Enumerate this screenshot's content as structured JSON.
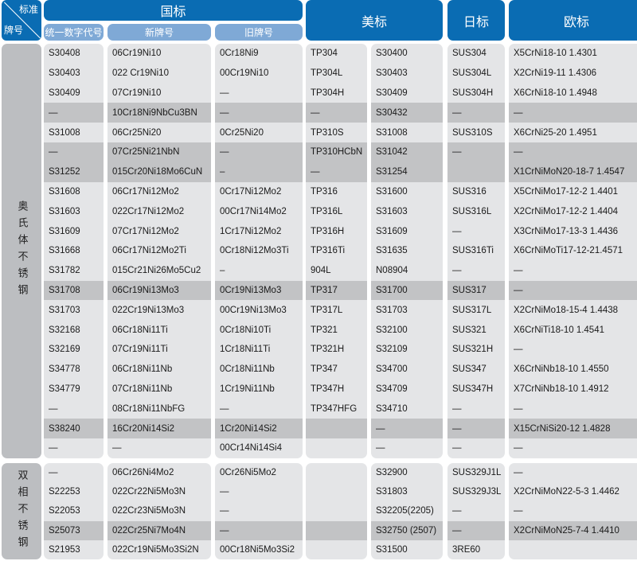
{
  "corner": {
    "standard": "标准",
    "grade": "牌号"
  },
  "headers": {
    "gb": "国标",
    "gb_sub": [
      "统一数字代号",
      "新牌号",
      "旧牌号"
    ],
    "us": "美标",
    "jp": "日标",
    "eu": "欧标"
  },
  "sections": [
    {
      "label": "奥氏体不锈钢",
      "dark_rows": [
        3,
        5,
        6,
        12,
        19
      ],
      "rows": [
        [
          "S30408",
          "06Cr19Ni10",
          "0Cr18Ni9",
          "TP304",
          "S30400",
          "SUS304",
          "X5CrNi18-10 1.4301"
        ],
        [
          "S30403",
          "022 Cr19Ni10",
          "00Cr19Ni10",
          "TP304L",
          "S30403",
          "SUS304L",
          "X2CrNi19-11  1.4306"
        ],
        [
          "S30409",
          "07Cr19Ni10",
          "—",
          "TP304H",
          "S30409",
          "SUS304H",
          "X6CrNi18-10  1.4948"
        ],
        [
          "—",
          "10Cr18Ni9NbCu3BN",
          "—",
          "—",
          "S30432",
          "—",
          "—"
        ],
        [
          "S31008",
          "06Cr25Ni20",
          "0Cr25Ni20",
          "TP310S",
          "S31008",
          "SUS310S",
          "X6CrNi25-20 1.4951"
        ],
        [
          "—",
          "07Cr25Ni21NbN",
          "—",
          "TP310HCbN",
          "S31042",
          "—",
          "—"
        ],
        [
          "S31252",
          "015Cr20Ni18Mo6CuN",
          "–",
          "—",
          "S31254",
          "",
          "X1CrNiMoN20-18-7 1.4547"
        ],
        [
          "S31608",
          "06Cr17Ni12Mo2",
          "0Cr17Ni12Mo2",
          "TP316",
          "S31600",
          "SUS316",
          "X5CrNiMo17-12-2 1.4401"
        ],
        [
          "S31603",
          "022Cr17Ni12Mo2",
          "00Cr17Ni14Mo2",
          "TP316L",
          "S31603",
          "SUS316L",
          "X2CrNiMo17-12-2 1.4404"
        ],
        [
          "S31609",
          "07Cr17Ni12Mo2",
          "1Cr17Ni12Mo2",
          "TP316H",
          "S31609",
          "—",
          "X3CrNiMo17-13-3 1.4436"
        ],
        [
          "S31668",
          "06Cr17Ni12Mo2Ti",
          "0Cr18Ni12Mo3Ti",
          "TP316Ti",
          "S31635",
          "SUS316Ti",
          "X6CrNiMoTi17-12-21.4571"
        ],
        [
          "S31782",
          "015Cr21Ni26Mo5Cu2",
          "–",
          "904L",
          "N08904",
          "—",
          "—"
        ],
        [
          "S31708",
          "06Cr19Ni13Mo3",
          "0Cr19Ni13Mo3",
          "TP317",
          "S31700",
          "SUS317",
          "—"
        ],
        [
          "S31703",
          "022Cr19Ni13Mo3",
          "00Cr19Ni13Mo3",
          "TP317L",
          "S31703",
          "SUS317L",
          "X2CrNiMo18-15-4 1.4438"
        ],
        [
          "S32168",
          "06Cr18Ni11Ti",
          "0Cr18Ni10Ti",
          "TP321",
          "S32100",
          "SUS321",
          "X6CrNiTi18-10 1.4541"
        ],
        [
          "S32169",
          "07Cr19Ni11Ti",
          "1Cr18Ni11Ti",
          "TP321H",
          "S32109",
          "SUS321H",
          "—"
        ],
        [
          "S34778",
          "06Cr18Ni11Nb",
          "0Cr18Ni11Nb",
          "TP347",
          "S34700",
          "SUS347",
          "X6CrNiNb18-10 1.4550"
        ],
        [
          "S34779",
          "07Cr18Ni11Nb",
          "1Cr19Ni11Nb",
          "TP347H",
          "S34709",
          "SUS347H",
          "X7CrNiNb18-10 1.4912"
        ],
        [
          "—",
          "08Cr18Ni11NbFG",
          "—",
          "TP347HFG",
          "S34710",
          "—",
          "—"
        ],
        [
          "S38240",
          "16Cr20Ni14Si2",
          "1Cr20Ni14Si2",
          "",
          "—",
          "—",
          "X15CrNiSi20-12 1.4828"
        ],
        [
          "—",
          "—",
          "00Cr14Ni14Si4",
          "",
          "—",
          "—",
          "—"
        ]
      ]
    },
    {
      "label": "双相不锈钢",
      "dark_rows": [
        3
      ],
      "rows": [
        [
          "—",
          "06Cr26Ni4Mo2",
          "0Cr26Ni5Mo2",
          "",
          "S32900",
          "SUS329J1L",
          "—"
        ],
        [
          "S22253",
          "022Cr22Ni5Mo3N",
          "—",
          "",
          "S31803",
          "SUS329J3L",
          "X2CrNiMoN22-5-3 1.4462"
        ],
        [
          "S22053",
          "022Cr23Ni5Mo3N",
          "—",
          "",
          "S32205(2205)",
          "—",
          "—"
        ],
        [
          "S25073",
          "022Cr25Ni7Mo4N",
          "—",
          "",
          "S32750 (2507)",
          "—",
          "X2CrNiMoN25-7-4 1.4410"
        ],
        [
          "S21953",
          "022Cr19Ni5Mo3Si2N",
          "00Cr18Ni5Mo3Si2",
          "",
          "S31500",
          "3RE60",
          ""
        ]
      ]
    }
  ]
}
